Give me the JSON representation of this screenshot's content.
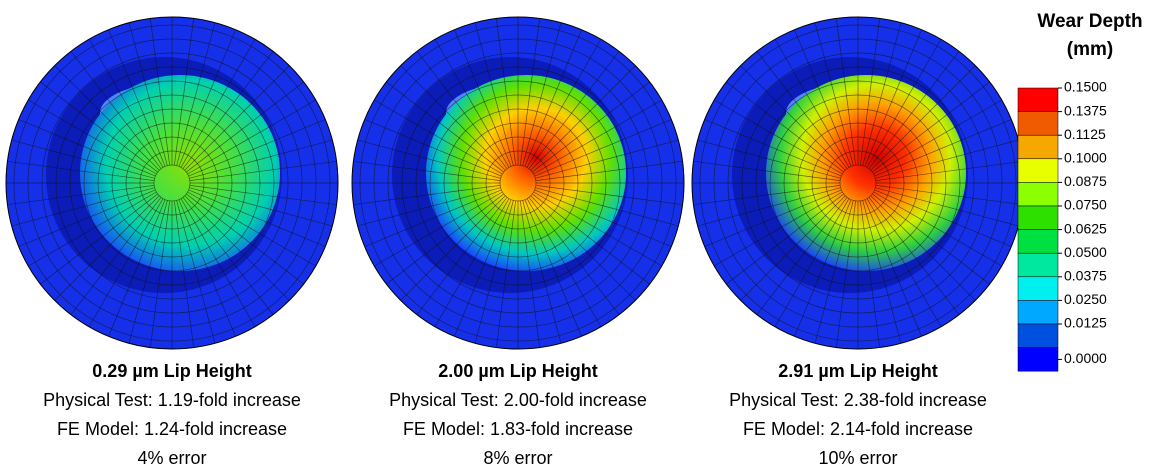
{
  "panels": [
    {
      "title": "0.29 µm Lip Height",
      "lines": [
        "Physical Test: 1.19-fold increase",
        "FE Model: 1.24-fold increase",
        "4% error"
      ]
    },
    {
      "title": "2.00 µm Lip Height",
      "lines": [
        "Physical Test: 2.00-fold increase",
        "FE Model: 1.83-fold increase",
        "8% error"
      ]
    },
    {
      "title": "2.91 µm Lip Height",
      "lines": [
        "Physical Test: 2.38-fold increase",
        "FE Model: 2.14-fold increase",
        "10% error"
      ]
    }
  ],
  "legend": {
    "title": [
      "Wear Depth",
      "(mm)"
    ],
    "labels": [
      "0.1500",
      "0.1375",
      "0.1125",
      "0.1000",
      "0.0875",
      "0.0750",
      "0.0625",
      "0.0500",
      "0.0375",
      "0.0250",
      "0.0125",
      "0.0000"
    ],
    "colors": [
      "#ff0000",
      "#f05a00",
      "#f5a800",
      "#e8ff00",
      "#8cff00",
      "#2ee000",
      "#00e040",
      "#00e8a0",
      "#00f0f0",
      "#00a8ff",
      "#0050e0",
      "#0000ff"
    ]
  }
}
